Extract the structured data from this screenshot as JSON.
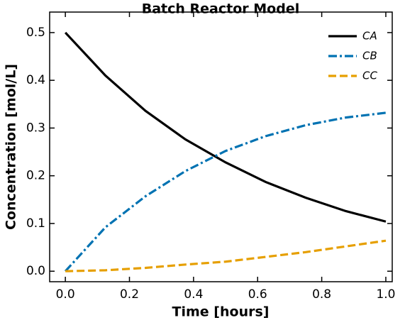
{
  "chart_data": {
    "type": "line",
    "title": "Batch Reactor Model",
    "xlabel": "Time [hours]",
    "ylabel": "Concentration [mol/L]",
    "x": [
      0,
      0.125,
      0.25,
      0.375,
      0.5,
      0.625,
      0.75,
      0.875,
      1
    ],
    "series": [
      {
        "name": "CA",
        "color": "#000000",
        "linestyle": "solid",
        "values": [
          0.5,
          0.41,
          0.336,
          0.276,
          0.228,
          0.187,
          0.154,
          0.126,
          0.104
        ]
      },
      {
        "name": "CB",
        "color": "#0072b2",
        "linestyle": "dashdot",
        "values": [
          0,
          0.092,
          0.157,
          0.21,
          0.252,
          0.283,
          0.306,
          0.322,
          0.332
        ]
      },
      {
        "name": "CC",
        "color": "#e69f00",
        "linestyle": "dashed",
        "values": [
          0,
          0.002,
          0.007,
          0.014,
          0.02,
          0.03,
          0.04,
          0.052,
          0.064
        ]
      }
    ],
    "xlim": [
      -0.049,
      1.02
    ],
    "ylim": [
      -0.022,
      0.543
    ],
    "xticks": [
      {
        "value": 0,
        "label": "0.0"
      },
      0.2,
      0.4,
      0.6,
      0.8,
      {
        "value": 1,
        "label": "1.0"
      }
    ],
    "yticks": [
      {
        "value": 0,
        "label": "0.0"
      },
      0.1,
      0.2,
      0.3,
      0.4,
      0.5
    ],
    "legend": "upper right"
  }
}
